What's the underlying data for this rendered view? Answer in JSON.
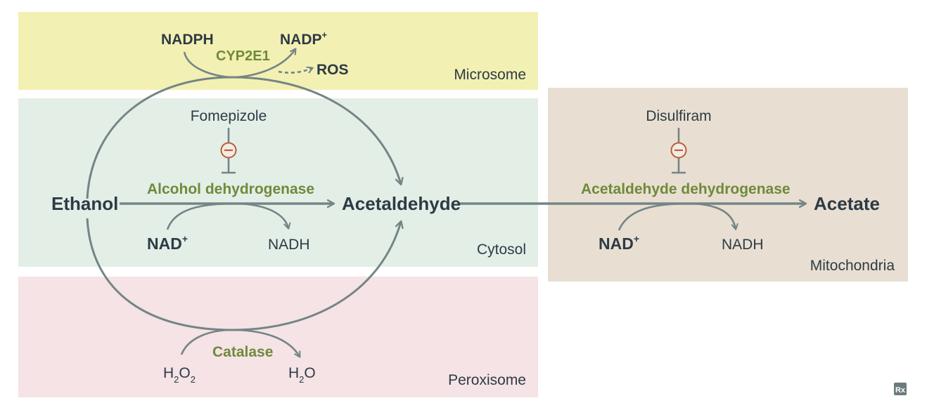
{
  "compartments": {
    "microsome": "Microsome",
    "cytosol": "Cytosol",
    "peroxisome": "Peroxisome",
    "mitochondria": "Mitochondria"
  },
  "molecules": {
    "ethanol": "Ethanol",
    "acetaldehyde": "Acetaldehyde",
    "acetate": "Acetate"
  },
  "enzymes": {
    "cyp2e1": "CYP2E1",
    "adh": "Alcohol dehydrogenase",
    "aldh": "Acetaldehyde dehydrogenase",
    "catalase": "Catalase"
  },
  "cofactors": {
    "nadph": "NADPH",
    "nadp": "NADP",
    "nadp_sup": "+",
    "ros": "ROS",
    "nad": "NAD",
    "nad_sup": "+",
    "nadh": "NADH",
    "h2o2_h": "H",
    "h2o2_sub1": "2",
    "h2o2_o": "O",
    "h2o2_sub2": "2",
    "h2o_h": "H",
    "h2o_sub": "2",
    "h2o_o": "O"
  },
  "inhibitors": {
    "fomepizole": "Fomepizole",
    "disulfiram": "Disulfiram",
    "symbol": "−"
  },
  "colors": {
    "microsome_bg": "#f3f0b3",
    "cytosol_bg": "#e3eee7",
    "peroxisome_bg": "#f5e3e6",
    "mitochondria_bg": "#e8dfd2",
    "arrow": "#748586",
    "enzyme_text": "#6f8a3a",
    "inhibitor": "#b5603d"
  },
  "logo": "Rx"
}
